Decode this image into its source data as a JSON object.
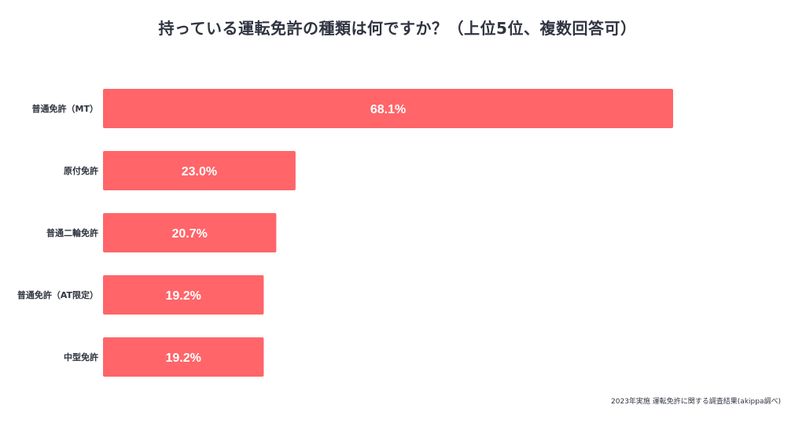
{
  "chart_data": {
    "type": "bar",
    "orientation": "horizontal",
    "title": "持っている運転免許の種類は何ですか？（上位5位、複数回答可）",
    "categories": [
      "普通免許（MT）",
      "原付免許",
      "普通二輪免許",
      "普通免許（AT限定）",
      "中型免許"
    ],
    "values": [
      68.1,
      23.0,
      20.7,
      19.2,
      19.2
    ],
    "value_labels": [
      "68.1%",
      "23.0%",
      "20.7%",
      "19.2%",
      "19.2%"
    ],
    "unit": "%",
    "xlim": [
      0,
      100
    ],
    "xlabel": "",
    "ylabel": "",
    "bar_color": "#ff6569",
    "label_color": "#ffffff",
    "grid": false
  },
  "footer": {
    "source": "2023年実施 運転免許に関する調査結果(akippa調べ)"
  }
}
